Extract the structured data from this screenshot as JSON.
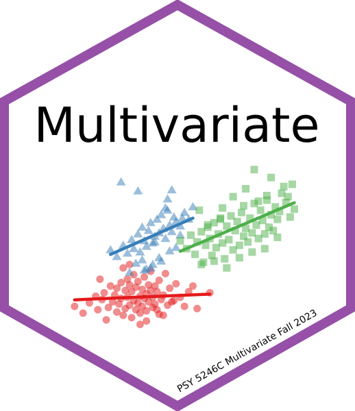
{
  "sticker": {
    "title": "Multivariate",
    "course_label": "PSY 5246C Multivariate Fall 2023",
    "border_color": "#9650A8",
    "background_color": "#FFFFFF",
    "title_color": "#000000"
  },
  "chart_data": {
    "type": "scatter",
    "title": "",
    "xlabel": "",
    "ylabel": "",
    "grid": false,
    "legend": "none",
    "axes_visible": false,
    "series": [
      {
        "shape": "circle",
        "color": "#E41A1C",
        "fit_line": true,
        "x": [
          1.0,
          1.4,
          1.7,
          2.0,
          2.1,
          2.3,
          2.4,
          2.6,
          2.7,
          2.8,
          2.9,
          3.0,
          3.0,
          3.1,
          3.2,
          3.2,
          3.3,
          3.4,
          3.4,
          3.5,
          3.5,
          3.6,
          3.6,
          3.7,
          3.7,
          3.8,
          3.8,
          3.9,
          3.9,
          4.0,
          4.0,
          4.1,
          4.1,
          4.2,
          4.2,
          4.3,
          4.3,
          4.4,
          4.4,
          4.5,
          4.5,
          4.6,
          4.6,
          4.7,
          4.7,
          4.8,
          4.8,
          4.9,
          5.0,
          5.0,
          5.1,
          5.2,
          5.3,
          5.4,
          5.5,
          5.6,
          5.8,
          6.0,
          6.2,
          6.4,
          6.6,
          2.5,
          3.3,
          4.1,
          4.9,
          5.7,
          3.6,
          4.4,
          5.2,
          2.2,
          6.8,
          7.4
        ],
        "y": [
          3.2,
          2.6,
          3.5,
          4.1,
          2.9,
          3.8,
          4.4,
          3.1,
          5.0,
          3.6,
          4.2,
          2.7,
          4.8,
          3.4,
          5.3,
          3.9,
          2.4,
          4.6,
          3.0,
          5.6,
          4.0,
          3.3,
          5.1,
          2.2,
          4.5,
          3.7,
          6.0,
          2.9,
          4.9,
          3.5,
          5.4,
          4.1,
          2.6,
          4.7,
          3.2,
          5.8,
          3.9,
          4.3,
          2.8,
          5.1,
          3.6,
          4.6,
          6.3,
          3.1,
          4.0,
          5.0,
          3.4,
          4.5,
          2.5,
          5.5,
          3.8,
          4.2,
          6.1,
          3.3,
          4.8,
          3.6,
          5.2,
          4.0,
          3.2,
          4.5,
          5.0,
          2.0,
          6.6,
          1.6,
          2.9,
          3.7,
          6.9,
          1.9,
          2.4,
          5.6,
          3.0,
          4.4
        ]
      },
      {
        "shape": "triangle",
        "color": "#377EB8",
        "fit_line": true,
        "x": [
          2.7,
          3.0,
          3.3,
          3.5,
          3.7,
          3.8,
          4.0,
          4.1,
          4.2,
          4.3,
          4.4,
          4.5,
          4.6,
          4.7,
          4.8,
          4.9,
          5.0,
          5.1,
          5.2,
          5.3,
          5.4,
          5.5,
          5.6,
          5.7,
          5.8,
          6.0,
          6.2,
          6.4,
          6.6,
          4.2,
          4.6,
          5.0,
          5.4,
          5.8,
          6.1,
          3.9,
          4.4,
          4.8,
          5.3,
          5.6,
          6.0,
          3.6,
          4.7,
          5.1,
          5.5,
          3.2,
          4.0,
          4.3
        ],
        "y": [
          8.2,
          7.6,
          8.6,
          7.9,
          9.1,
          8.3,
          9.6,
          8.0,
          10.2,
          9.0,
          8.5,
          9.9,
          10.6,
          8.8,
          9.4,
          10.9,
          9.7,
          11.3,
          10.1,
          9.2,
          11.7,
          10.4,
          9.8,
          11.1,
          10.7,
          10.3,
          11.5,
          10.9,
          12.0,
          7.3,
          6.6,
          7.5,
          12.7,
          8.4,
          11.0,
          7.0,
          6.5,
          8.9,
          11.9,
          13.5,
          9.5,
          6.2,
          6.9,
          7.2,
          8.1,
          14.2,
          13.4,
          6.4
        ],
        "outliers_note": ""
      },
      {
        "shape": "square",
        "color": "#4DAF4A",
        "fit_line": true,
        "x": [
          6.0,
          6.3,
          6.5,
          6.7,
          6.8,
          7.0,
          7.1,
          7.2,
          7.3,
          7.4,
          7.5,
          7.6,
          7.7,
          7.8,
          7.9,
          8.0,
          8.1,
          8.2,
          8.3,
          8.4,
          8.5,
          8.6,
          8.7,
          8.8,
          8.9,
          9.0,
          9.1,
          9.2,
          9.3,
          9.4,
          9.5,
          9.6,
          9.7,
          9.8,
          9.9,
          10.0,
          10.1,
          10.2,
          10.3,
          10.4,
          10.5,
          10.6,
          10.7,
          10.8,
          11.0,
          11.2,
          11.4,
          7.0,
          7.6,
          8.2,
          8.8,
          9.4,
          10.0,
          10.6,
          7.3,
          7.9,
          8.5,
          9.1,
          9.7,
          10.3,
          11.1,
          6.9,
          8.0,
          9.0,
          10.1,
          11.3,
          9.5,
          10.9
        ],
        "y": [
          9.0,
          8.3,
          9.5,
          7.8,
          8.9,
          9.8,
          7.1,
          8.6,
          10.2,
          9.2,
          7.7,
          10.6,
          8.4,
          9.6,
          10.9,
          8.8,
          7.4,
          10.3,
          9.1,
          11.2,
          8.2,
          9.9,
          10.7,
          8.6,
          11.5,
          9.4,
          10.1,
          8.9,
          11.0,
          9.7,
          12.3,
          10.4,
          9.2,
          11.7,
          10.8,
          9.6,
          12.6,
          10.2,
          11.3,
          9.9,
          12.0,
          10.9,
          11.6,
          13.2,
          12.4,
          11.1,
          11.8,
          6.9,
          7.2,
          6.6,
          7.5,
          8.0,
          8.3,
          9.3,
          10.4,
          11.0,
          12.9,
          13.6,
          12.5,
          14.6,
          12.9,
          11.7,
          11.9,
          12.1,
          13.0,
          14.0,
          15.3,
          13.8
        ]
      }
    ]
  }
}
